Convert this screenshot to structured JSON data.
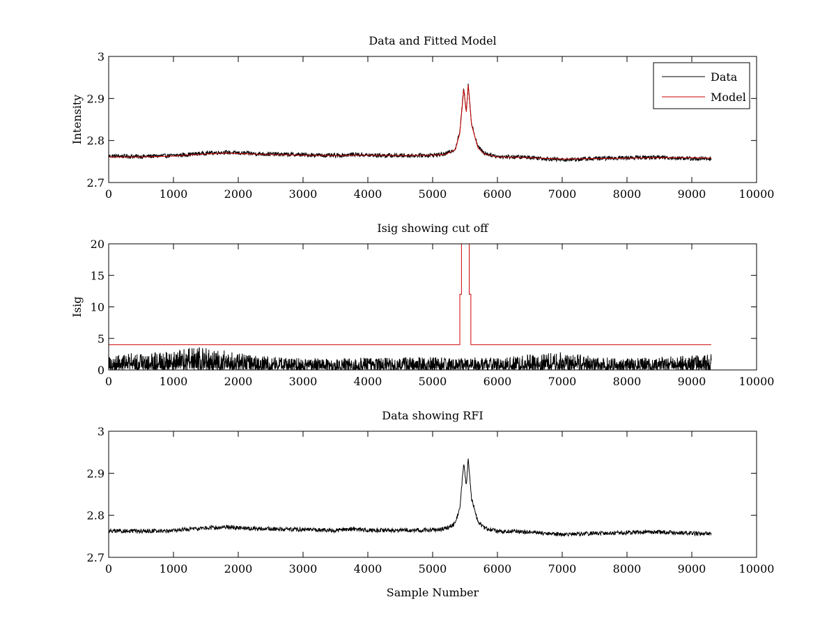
{
  "figure": {
    "background": "#ffffff",
    "data_color": "#000000",
    "model_color": "#cc0000"
  },
  "chart_data": [
    {
      "type": "line",
      "title": "Data and Fitted Model",
      "xlabel": "",
      "ylabel": "Intensity",
      "xlim": [
        0,
        10000
      ],
      "ylim": [
        2.7,
        3.0
      ],
      "xticks": [
        0,
        1000,
        2000,
        3000,
        4000,
        5000,
        6000,
        7000,
        8000,
        9000,
        10000
      ],
      "yticks": [
        2.7,
        2.8,
        2.9,
        3.0
      ],
      "ytick_labels": [
        "2.7",
        "2.8",
        "2.9",
        "3"
      ],
      "legend": {
        "position": "top-right",
        "entries": [
          "Data",
          "Model"
        ]
      },
      "series": [
        {
          "name": "Data",
          "color": "#000000",
          "kind": "noisy",
          "noise_amplitude": 0.005,
          "x": [
            0,
            500,
            1000,
            1500,
            1800,
            2000,
            2400,
            3000,
            3500,
            3800,
            4000,
            4500,
            5000,
            5200,
            5350,
            5420,
            5480,
            5520,
            5550,
            5600,
            5700,
            5800,
            6000,
            6500,
            7000,
            7500,
            8000,
            8500,
            9000,
            9300
          ],
          "y": [
            2.763,
            2.762,
            2.764,
            2.77,
            2.772,
            2.77,
            2.768,
            2.766,
            2.764,
            2.767,
            2.765,
            2.764,
            2.765,
            2.768,
            2.78,
            2.82,
            2.925,
            2.87,
            2.935,
            2.84,
            2.785,
            2.77,
            2.762,
            2.76,
            2.754,
            2.757,
            2.759,
            2.76,
            2.757,
            2.756
          ]
        },
        {
          "name": "Model",
          "color": "#cc0000",
          "kind": "smooth",
          "x": [
            0,
            500,
            1000,
            1500,
            1800,
            2000,
            2400,
            3000,
            3500,
            3800,
            4000,
            4500,
            5000,
            5200,
            5350,
            5420,
            5480,
            5520,
            5550,
            5600,
            5700,
            5800,
            6000,
            6500,
            7000,
            7500,
            8000,
            8500,
            9000,
            9300
          ],
          "y": [
            2.761,
            2.761,
            2.763,
            2.768,
            2.77,
            2.769,
            2.767,
            2.765,
            2.764,
            2.765,
            2.765,
            2.764,
            2.765,
            2.767,
            2.778,
            2.818,
            2.922,
            2.868,
            2.932,
            2.838,
            2.782,
            2.768,
            2.761,
            2.759,
            2.756,
            2.757,
            2.758,
            2.759,
            2.759,
            2.758
          ]
        }
      ]
    },
    {
      "type": "line",
      "title": "Isig showing cut off",
      "xlabel": "",
      "ylabel": "Isig",
      "xlim": [
        0,
        10000
      ],
      "ylim": [
        0,
        20
      ],
      "xticks": [
        0,
        1000,
        2000,
        3000,
        4000,
        5000,
        6000,
        7000,
        8000,
        9000,
        10000
      ],
      "yticks": [
        0,
        5,
        10,
        15,
        20
      ],
      "ytick_labels": [
        "0",
        "5",
        "10",
        "15",
        "20"
      ],
      "series": [
        {
          "name": "Isig",
          "color": "#000000",
          "kind": "noise-floor",
          "x": [
            0,
            1000,
            1300,
            1800,
            2200,
            3000,
            4000,
            5000,
            6000,
            7000,
            7500,
            8000,
            9000,
            9300
          ],
          "y": [
            2.2,
            2.6,
            3.2,
            2.8,
            2.0,
            1.6,
            1.7,
            1.8,
            1.7,
            2.6,
            1.8,
            1.6,
            2.0,
            2.2
          ]
        },
        {
          "name": "Cut off",
          "color": "#cc0000",
          "kind": "step",
          "x": [
            0,
            5420,
            5420,
            5445,
            5445,
            5565,
            5565,
            5590,
            5590,
            9300
          ],
          "y": [
            4,
            4,
            12,
            12,
            20,
            20,
            12,
            12,
            4,
            4
          ]
        }
      ]
    },
    {
      "type": "line",
      "title": "Data showing RFI",
      "xlabel": "Sample Number",
      "ylabel": "",
      "xlim": [
        0,
        10000
      ],
      "ylim": [
        2.7,
        3.0
      ],
      "xticks": [
        0,
        1000,
        2000,
        3000,
        4000,
        5000,
        6000,
        7000,
        8000,
        9000,
        10000
      ],
      "yticks": [
        2.7,
        2.8,
        2.9,
        3.0
      ],
      "ytick_labels": [
        "2.7",
        "2.8",
        "2.9",
        "3"
      ],
      "series": [
        {
          "name": "Data",
          "color": "#000000",
          "kind": "noisy",
          "noise_amplitude": 0.005,
          "x": [
            0,
            500,
            1000,
            1500,
            1800,
            2000,
            2400,
            3000,
            3500,
            3800,
            4000,
            4500,
            5000,
            5200,
            5350,
            5420,
            5480,
            5520,
            5550,
            5600,
            5700,
            5800,
            6000,
            6500,
            7000,
            7500,
            8000,
            8500,
            9000,
            9300
          ],
          "y": [
            2.763,
            2.762,
            2.764,
            2.77,
            2.772,
            2.77,
            2.768,
            2.766,
            2.764,
            2.767,
            2.765,
            2.764,
            2.765,
            2.768,
            2.78,
            2.82,
            2.925,
            2.87,
            2.935,
            2.84,
            2.785,
            2.77,
            2.762,
            2.76,
            2.754,
            2.757,
            2.759,
            2.76,
            2.757,
            2.756
          ]
        }
      ]
    }
  ]
}
